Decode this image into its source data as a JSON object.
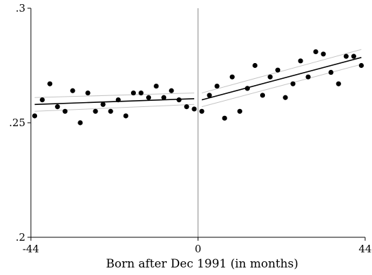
{
  "chart_data": {
    "type": "scatter",
    "title": "",
    "xlabel": "Born after Dec 1991 (in months)",
    "ylabel": "",
    "xlim": [
      -44,
      44
    ],
    "ylim": [
      0.2,
      0.3
    ],
    "xticks": [
      -44,
      0,
      44
    ],
    "xtick_labels": [
      "-44",
      "0",
      "44"
    ],
    "yticks": [
      0.2,
      0.25,
      0.3
    ],
    "ytick_labels": [
      ".2",
      ".25",
      ".3"
    ],
    "grid": false,
    "cutoff_x": 0,
    "points": {
      "x": [
        -43,
        -41,
        -39,
        -37,
        -35,
        -33,
        -31,
        -29,
        -27,
        -25,
        -23,
        -21,
        -19,
        -17,
        -15,
        -13,
        -11,
        -9,
        -7,
        -5,
        -3,
        -1,
        1,
        3,
        5,
        7,
        9,
        11,
        13,
        15,
        17,
        19,
        21,
        23,
        25,
        27,
        29,
        31,
        33,
        35,
        37,
        39,
        41,
        43
      ],
      "y": [
        0.253,
        0.26,
        0.267,
        0.257,
        0.255,
        0.264,
        0.25,
        0.263,
        0.255,
        0.258,
        0.255,
        0.26,
        0.253,
        0.263,
        0.263,
        0.261,
        0.266,
        0.261,
        0.264,
        0.26,
        0.257,
        0.256,
        0.255,
        0.262,
        0.266,
        0.252,
        0.27,
        0.255,
        0.265,
        0.275,
        0.262,
        0.27,
        0.273,
        0.261,
        0.267,
        0.277,
        0.27,
        0.281,
        0.28,
        0.272,
        0.267,
        0.279,
        0.279,
        0.275
      ]
    },
    "fit_lines": [
      {
        "x": [
          -43,
          -1
        ],
        "y": [
          0.258,
          0.2605
        ]
      },
      {
        "x": [
          1,
          43
        ],
        "y": [
          0.26,
          0.2785
        ]
      }
    ],
    "ci_bands": [
      {
        "x": [
          -43,
          -1
        ],
        "upper": [
          0.261,
          0.263
        ],
        "lower": [
          0.255,
          0.258
        ]
      },
      {
        "x": [
          1,
          43
        ],
        "upper": [
          0.263,
          0.282
        ],
        "lower": [
          0.257,
          0.2755
        ]
      }
    ]
  }
}
